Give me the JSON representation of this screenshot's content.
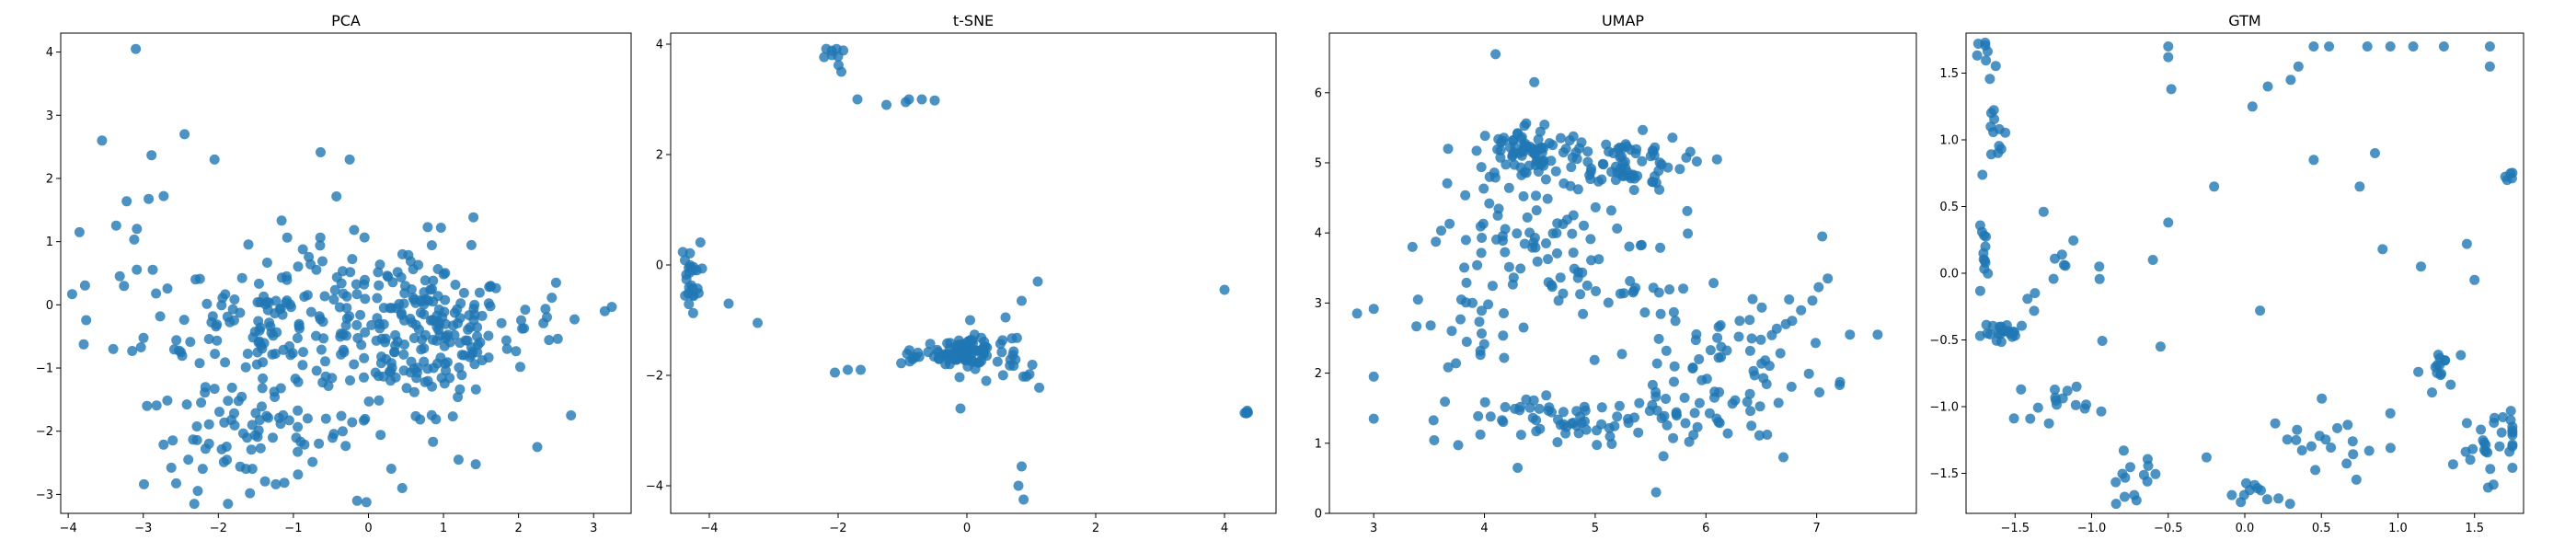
{
  "colors": {
    "point": "#1f77b4",
    "axis": "#000000",
    "background": "#ffffff"
  },
  "chart_data": [
    {
      "type": "scatter",
      "title": "PCA",
      "xlim": [
        -4.1,
        3.5
      ],
      "ylim": [
        -3.3,
        4.3
      ],
      "xticks": [
        -4,
        -3,
        -2,
        -1,
        0,
        1,
        2,
        3
      ],
      "yticks": [
        -3,
        -2,
        -1,
        0,
        1,
        2,
        3,
        4
      ],
      "grid": false,
      "clusters": [
        {
          "cx": 0.8,
          "cy": -0.45,
          "sx": 0.55,
          "sy": 0.5,
          "n": 150
        },
        {
          "cx": -1.3,
          "cy": -0.35,
          "sx": 0.85,
          "sy": 0.45,
          "n": 110
        },
        {
          "cx": -1.6,
          "cy": -2.1,
          "sx": 0.7,
          "sy": 0.4,
          "n": 75
        },
        {
          "cx": -0.2,
          "cy": 0.45,
          "sx": 1.0,
          "sy": 0.6,
          "n": 60
        },
        {
          "cx": 0.1,
          "cy": -1.6,
          "sx": 0.9,
          "sy": 0.6,
          "n": 40
        },
        {
          "cx": -3.0,
          "cy": 0.9,
          "sx": 0.35,
          "sy": 0.6,
          "n": 14
        },
        {
          "cx": 2.4,
          "cy": -0.3,
          "sx": 0.35,
          "sy": 0.4,
          "n": 14
        }
      ],
      "points": [
        [
          -3.1,
          4.05
        ],
        [
          -3.55,
          2.6
        ],
        [
          -2.45,
          2.7
        ],
        [
          -2.05,
          2.3
        ],
        [
          -0.25,
          2.3
        ],
        [
          2.5,
          0.35
        ],
        [
          3.15,
          -0.1
        ],
        [
          2.7,
          -1.75
        ],
        [
          2.25,
          -2.25
        ],
        [
          -0.15,
          -3.1
        ],
        [
          0.45,
          -2.9
        ],
        [
          -3.4,
          -0.7
        ],
        [
          -3.85,
          1.15
        ],
        [
          -2.95,
          -1.6
        ],
        [
          -2.4,
          -2.45
        ],
        [
          1.2,
          -2.45
        ]
      ]
    },
    {
      "type": "scatter",
      "title": "t-SNE",
      "xlim": [
        -4.6,
        4.8
      ],
      "ylim": [
        -4.5,
        4.2
      ],
      "xticks": [
        -4,
        -2,
        0,
        2,
        4
      ],
      "yticks": [
        -4,
        -2,
        0,
        2,
        4
      ],
      "grid": false,
      "clusters": [
        {
          "cx": 0.0,
          "cy": -1.55,
          "sx": 0.2,
          "sy": 0.12,
          "n": 70
        },
        {
          "cx": -0.55,
          "cy": -1.68,
          "sx": 0.4,
          "sy": 0.06,
          "n": 22
        },
        {
          "cx": -4.3,
          "cy": -0.2,
          "sx": 0.08,
          "sy": 0.3,
          "n": 25
        },
        {
          "cx": 0.65,
          "cy": -1.9,
          "sx": 0.25,
          "sy": 0.35,
          "n": 18
        },
        {
          "cx": -2.05,
          "cy": 3.8,
          "sx": 0.08,
          "sy": 0.1,
          "n": 8
        },
        {
          "cx": 4.35,
          "cy": -2.68,
          "sx": 0.04,
          "sy": 0.04,
          "n": 6
        }
      ],
      "points": [
        [
          -1.95,
          3.5
        ],
        [
          -1.7,
          3.0
        ],
        [
          -1.25,
          2.9
        ],
        [
          -0.9,
          3.0
        ],
        [
          -0.7,
          3.0
        ],
        [
          -0.95,
          2.95
        ],
        [
          -0.5,
          2.98
        ],
        [
          -3.7,
          -0.7
        ],
        [
          -3.25,
          -1.05
        ],
        [
          -2.05,
          -1.95
        ],
        [
          -1.85,
          -1.9
        ],
        [
          -1.65,
          -1.9
        ],
        [
          -0.1,
          -2.6
        ],
        [
          0.85,
          -3.65
        ],
        [
          0.8,
          -4.0
        ],
        [
          0.88,
          -4.25
        ],
        [
          1.1,
          -0.3
        ],
        [
          0.85,
          -0.65
        ],
        [
          0.6,
          -0.95
        ],
        [
          4.0,
          -0.45
        ],
        [
          0.3,
          -2.1
        ],
        [
          0.05,
          -1.0
        ]
      ]
    },
    {
      "type": "scatter",
      "title": "UMAP",
      "xlim": [
        2.6,
        7.9
      ],
      "ylim": [
        0,
        6.85
      ],
      "xticks": [
        3,
        4,
        5,
        6,
        7
      ],
      "yticks": [
        0,
        1,
        2,
        3,
        4,
        5,
        6
      ],
      "grid": false,
      "clusters": [
        {
          "cx": 4.4,
          "cy": 5.15,
          "sx": 0.25,
          "sy": 0.22,
          "n": 80
        },
        {
          "cx": 5.25,
          "cy": 5.0,
          "sx": 0.28,
          "sy": 0.2,
          "n": 70
        },
        {
          "cx": 4.3,
          "cy": 3.9,
          "sx": 0.38,
          "sy": 0.42,
          "n": 60
        },
        {
          "cx": 5.2,
          "cy": 3.3,
          "sx": 0.45,
          "sy": 0.5,
          "n": 30
        },
        {
          "cx": 5.0,
          "cy": 1.3,
          "sx": 0.65,
          "sy": 0.2,
          "n": 70
        },
        {
          "cx": 6.35,
          "cy": 2.3,
          "sx": 0.4,
          "sy": 0.45,
          "n": 55
        },
        {
          "cx": 3.9,
          "cy": 2.7,
          "sx": 0.3,
          "sy": 0.55,
          "n": 28
        },
        {
          "cx": 5.8,
          "cy": 1.6,
          "sx": 0.35,
          "sy": 0.3,
          "n": 25
        }
      ],
      "points": [
        [
          4.1,
          6.55
        ],
        [
          4.45,
          6.15
        ],
        [
          2.85,
          2.85
        ],
        [
          3.0,
          1.95
        ],
        [
          3.0,
          1.35
        ],
        [
          3.35,
          3.8
        ],
        [
          7.05,
          3.95
        ],
        [
          7.1,
          3.35
        ],
        [
          7.55,
          2.55
        ],
        [
          7.3,
          2.55
        ],
        [
          5.55,
          0.3
        ],
        [
          6.7,
          0.8
        ],
        [
          6.1,
          5.05
        ],
        [
          3.4,
          3.05
        ],
        [
          4.3,
          0.65
        ]
      ]
    },
    {
      "type": "scatter",
      "title": "GTM",
      "xlim": [
        -1.82,
        1.82
      ],
      "ylim": [
        -1.8,
        1.8
      ],
      "xticks": [
        -1.5,
        -1.0,
        -0.5,
        0.0,
        0.5,
        1.0,
        1.5
      ],
      "yticks": [
        -1.5,
        -1.0,
        -0.5,
        0.0,
        0.5,
        1.0,
        1.5
      ],
      "grid": false,
      "clusters": [
        {
          "cx": -1.55,
          "cy": -0.45,
          "sx": 0.08,
          "sy": 0.04,
          "n": 22
        },
        {
          "cx": -1.7,
          "cy": 0.15,
          "sx": 0.02,
          "sy": 0.1,
          "n": 12
        },
        {
          "cx": -1.6,
          "cy": 1.0,
          "sx": 0.04,
          "sy": 0.15,
          "n": 12
        },
        {
          "cx": -1.68,
          "cy": 1.62,
          "sx": 0.03,
          "sy": 0.08,
          "n": 8
        },
        {
          "cx": -1.25,
          "cy": -0.95,
          "sx": 0.12,
          "sy": 0.08,
          "n": 16
        },
        {
          "cx": -0.75,
          "cy": -1.55,
          "sx": 0.1,
          "sy": 0.1,
          "n": 14
        },
        {
          "cx": 0.1,
          "cy": -1.65,
          "sx": 0.15,
          "sy": 0.04,
          "n": 10
        },
        {
          "cx": 0.55,
          "cy": -1.3,
          "sx": 0.2,
          "sy": 0.15,
          "n": 20
        },
        {
          "cx": 1.3,
          "cy": -0.72,
          "sx": 0.07,
          "sy": 0.08,
          "n": 14
        },
        {
          "cx": 1.6,
          "cy": -1.25,
          "sx": 0.12,
          "sy": 0.15,
          "n": 30
        },
        {
          "cx": 1.72,
          "cy": 0.72,
          "sx": 0.02,
          "sy": 0.03,
          "n": 5
        },
        {
          "cx": -1.15,
          "cy": -0.1,
          "sx": 0.15,
          "sy": 0.25,
          "n": 12
        }
      ],
      "points": [
        [
          -0.5,
          1.7
        ],
        [
          -0.5,
          1.62
        ],
        [
          -0.48,
          1.38
        ],
        [
          0.35,
          1.55
        ],
        [
          0.3,
          1.45
        ],
        [
          0.45,
          1.7
        ],
        [
          0.55,
          1.7
        ],
        [
          0.8,
          1.7
        ],
        [
          0.95,
          1.7
        ],
        [
          1.1,
          1.7
        ],
        [
          1.3,
          1.7
        ],
        [
          1.6,
          1.7
        ],
        [
          1.6,
          1.55
        ],
        [
          0.05,
          1.25
        ],
        [
          0.15,
          1.4
        ],
        [
          -0.2,
          0.65
        ],
        [
          0.45,
          0.85
        ],
        [
          0.75,
          0.65
        ],
        [
          0.85,
          0.9
        ],
        [
          0.9,
          0.18
        ],
        [
          1.15,
          0.05
        ],
        [
          1.45,
          0.22
        ],
        [
          -0.55,
          -0.55
        ],
        [
          0.1,
          -0.28
        ],
        [
          -0.6,
          0.1
        ],
        [
          -0.5,
          0.38
        ],
        [
          0.95,
          -1.05
        ],
        [
          -0.25,
          -1.38
        ],
        [
          1.5,
          -0.05
        ],
        [
          -0.95,
          0.05
        ]
      ]
    }
  ]
}
